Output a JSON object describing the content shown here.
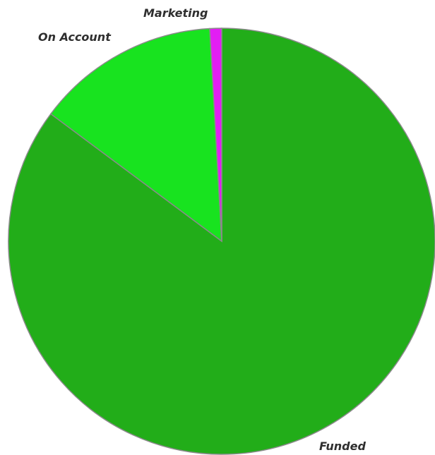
{
  "chart_data": {
    "type": "pie",
    "title": "",
    "legend": "none",
    "start_angle": "12 o'clock",
    "direction": "clockwise",
    "slices": [
      {
        "label": "Funded",
        "value": 85.2,
        "color": "#22ad19"
      },
      {
        "label": "On Account",
        "value": 13.9,
        "color": "#18e31f"
      },
      {
        "label": "Marketing",
        "value": 0.9,
        "color": "#e21ef3"
      }
    ]
  }
}
